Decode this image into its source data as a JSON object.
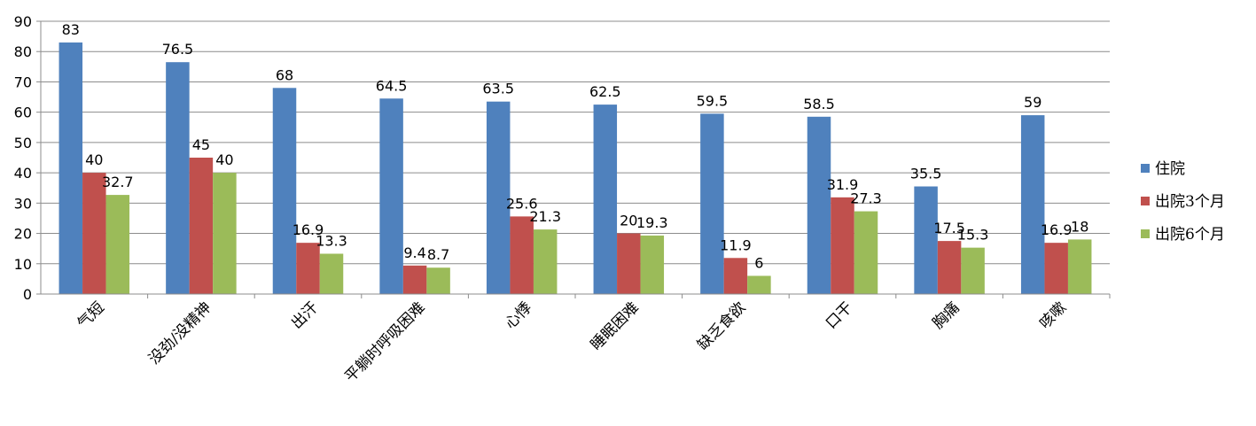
{
  "chart_data": {
    "type": "bar",
    "categories": [
      "气短",
      "没劲/没精神",
      "出汗",
      "平躺时呼吸困难",
      "心悸",
      "睡眠困难",
      "缺乏食欲",
      "口干",
      "胸痛",
      "咳嗽"
    ],
    "series": [
      {
        "name": "住院",
        "color": "#4F81BD",
        "values": [
          83,
          76.5,
          68,
          64.5,
          63.5,
          62.5,
          59.5,
          58.5,
          35.5,
          59
        ]
      },
      {
        "name": "出院3个月",
        "color": "#C0504D",
        "values": [
          40,
          45,
          16.9,
          9.4,
          25.6,
          20,
          11.9,
          31.9,
          17.5,
          16.9
        ]
      },
      {
        "name": "出院6个月",
        "color": "#9BBB59",
        "values": [
          32.7,
          40,
          13.3,
          8.7,
          21.3,
          19.3,
          6,
          27.3,
          15.3,
          18
        ]
      }
    ],
    "yticks": [
      0,
      10,
      20,
      30,
      40,
      50,
      60,
      70,
      80,
      90
    ],
    "ylim": [
      0,
      90
    ],
    "grid": true,
    "legend_position": "right",
    "title": "",
    "xlabel": "",
    "ylabel": ""
  }
}
